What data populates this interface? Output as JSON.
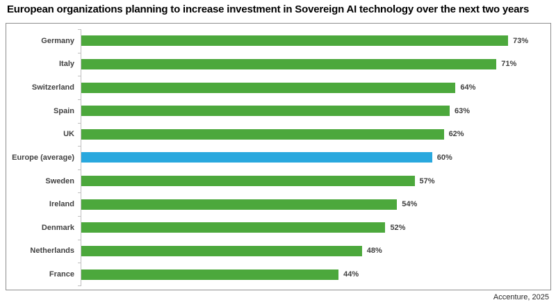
{
  "title": "European organizations planning to increase investment in Sovereign AI technology over the next two years",
  "source": "Accenture, 2025",
  "chart_data": {
    "type": "bar",
    "orientation": "horizontal",
    "title": "European organizations planning to increase investment in Sovereign AI technology over the next two years",
    "categories": [
      "Germany",
      "Italy",
      "Switzerland",
      "Spain",
      "UK",
      "Europe (average)",
      "Sweden",
      "Ireland",
      "Denmark",
      "Netherlands",
      "France"
    ],
    "values": [
      73,
      71,
      64,
      63,
      62,
      60,
      57,
      54,
      52,
      48,
      44
    ],
    "value_suffix": "%",
    "xlabel": "",
    "ylabel": "",
    "xlim": [
      0,
      80
    ],
    "grid": false,
    "legend": false,
    "data_labels": true,
    "highlight_category": "Europe (average)",
    "colors": {
      "bar": "#4ca83c",
      "highlight": "#29a8de",
      "axis": "#bfbfbf",
      "label": "#404040",
      "frame": "#8c8c8c"
    }
  }
}
